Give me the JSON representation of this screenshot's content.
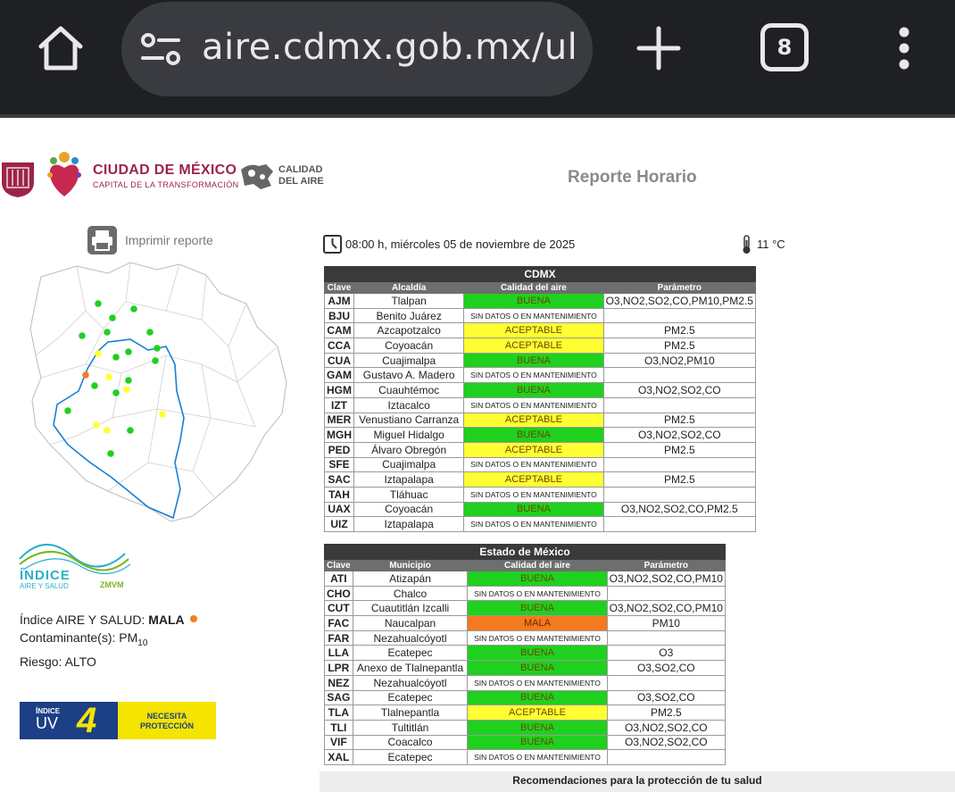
{
  "browser": {
    "url": "aire.cdmx.gob.mx/ult",
    "tab_count": "8"
  },
  "header": {
    "cdmx_title": "CIUDAD DE MÉXICO",
    "cdmx_subtitle": "CAPITAL DE LA TRANSFORMACIÓN",
    "calidad_logo": "CALIDAD\nDEL AIRE",
    "report_title": "Reporte Horario",
    "print_label": "Imprimir reporte"
  },
  "timestamp": "08:00 h, miércoles 05 de noviembre de 2025",
  "temperature": "11 °C",
  "indice": {
    "logo_line1": "ÍNDICE",
    "logo_line2": "AIRE Y SALUD",
    "logo_zmvm": "ZMVM",
    "label": "Índice AIRE Y SALUD: ",
    "value": "MALA",
    "contaminante_label": "Contaminante(s): PM",
    "contaminante_sub": "10",
    "riesgo": "Riesgo: ALTO",
    "status_color": "#f07f1a"
  },
  "uv": {
    "label_small": "ÍNDICE",
    "label_big": "UV",
    "value": "4",
    "recommendation_line1": "NECESITA",
    "recommendation_line2": "PROTECCIÓN"
  },
  "colors": {
    "buena": "#1fd01f",
    "aceptable": "#ffff33",
    "mala": "#f47a1f"
  },
  "cdmx_table": {
    "title": "CDMX",
    "headers": [
      "Clave",
      "Alcaldía",
      "Calidad del aire",
      "Parámetro"
    ],
    "rows": [
      {
        "clave": "AJM",
        "name": "Tlalpan",
        "quality": "BUENA",
        "level": "buena",
        "param": "O3,NO2,SO2,CO,PM10,PM2.5"
      },
      {
        "clave": "BJU",
        "name": "Benito Juárez",
        "quality": "SIN DATOS O EN MANTENIMIENTO",
        "level": "nd",
        "param": ""
      },
      {
        "clave": "CAM",
        "name": "Azcapotzalco",
        "quality": "ACEPTABLE",
        "level": "aceptable",
        "param": "PM2.5"
      },
      {
        "clave": "CCA",
        "name": "Coyoacán",
        "quality": "ACEPTABLE",
        "level": "aceptable",
        "param": "PM2.5"
      },
      {
        "clave": "CUA",
        "name": "Cuajimalpa",
        "quality": "BUENA",
        "level": "buena",
        "param": "O3,NO2,PM10"
      },
      {
        "clave": "GAM",
        "name": "Gustavo A. Madero",
        "quality": "SIN DATOS O EN MANTENIMIENTO",
        "level": "nd",
        "param": ""
      },
      {
        "clave": "HGM",
        "name": "Cuauhtémoc",
        "quality": "BUENA",
        "level": "buena",
        "param": "O3,NO2,SO2,CO"
      },
      {
        "clave": "IZT",
        "name": "Iztacalco",
        "quality": "SIN DATOS O EN MANTENIMIENTO",
        "level": "nd",
        "param": ""
      },
      {
        "clave": "MER",
        "name": "Venustiano Carranza",
        "quality": "ACEPTABLE",
        "level": "aceptable",
        "param": "PM2.5"
      },
      {
        "clave": "MGH",
        "name": "Miguel Hidalgo",
        "quality": "BUENA",
        "level": "buena",
        "param": "O3,NO2,SO2,CO"
      },
      {
        "clave": "PED",
        "name": "Álvaro Obregón",
        "quality": "ACEPTABLE",
        "level": "aceptable",
        "param": "PM2.5"
      },
      {
        "clave": "SFE",
        "name": "Cuajimalpa",
        "quality": "SIN DATOS O EN MANTENIMIENTO",
        "level": "nd",
        "param": ""
      },
      {
        "clave": "SAC",
        "name": "Iztapalapa",
        "quality": "ACEPTABLE",
        "level": "aceptable",
        "param": "PM2.5"
      },
      {
        "clave": "TAH",
        "name": "Tláhuac",
        "quality": "SIN DATOS O EN MANTENIMIENTO",
        "level": "nd",
        "param": ""
      },
      {
        "clave": "UAX",
        "name": "Coyoacán",
        "quality": "BUENA",
        "level": "buena",
        "param": "O3,NO2,SO2,CO,PM2.5"
      },
      {
        "clave": "UIZ",
        "name": "Iztapalapa",
        "quality": "SIN DATOS O EN MANTENIMIENTO",
        "level": "nd",
        "param": ""
      }
    ]
  },
  "edomex_table": {
    "title": "Estado de México",
    "headers": [
      "Clave",
      "Municipio",
      "Calidad del aire",
      "Parámetro"
    ],
    "rows": [
      {
        "clave": "ATI",
        "name": "Atizapán",
        "quality": "BUENA",
        "level": "buena",
        "param": "O3,NO2,SO2,CO,PM10"
      },
      {
        "clave": "CHO",
        "name": "Chalco",
        "quality": "SIN DATOS O EN MANTENIMIENTO",
        "level": "nd",
        "param": ""
      },
      {
        "clave": "CUT",
        "name": "Cuautitlán Izcalli",
        "quality": "BUENA",
        "level": "buena",
        "param": "O3,NO2,SO2,CO,PM10"
      },
      {
        "clave": "FAC",
        "name": "Naucalpan",
        "quality": "MALA",
        "level": "mala",
        "param": "PM10"
      },
      {
        "clave": "FAR",
        "name": "Nezahualcóyotl",
        "quality": "SIN DATOS O EN MANTENIMIENTO",
        "level": "nd",
        "param": ""
      },
      {
        "clave": "LLA",
        "name": "Ecatepec",
        "quality": "BUENA",
        "level": "buena",
        "param": "O3"
      },
      {
        "clave": "LPR",
        "name": "Anexo de Tlalnepantla",
        "quality": "BUENA",
        "level": "buena",
        "param": "O3,SO2,CO"
      },
      {
        "clave": "NEZ",
        "name": "Nezahualcóyotl",
        "quality": "SIN DATOS O EN MANTENIMIENTO",
        "level": "nd",
        "param": ""
      },
      {
        "clave": "SAG",
        "name": "Ecatepec",
        "quality": "BUENA",
        "level": "buena",
        "param": "O3,SO2,CO"
      },
      {
        "clave": "TLA",
        "name": "Tlalnepantla",
        "quality": "ACEPTABLE",
        "level": "aceptable",
        "param": "PM2.5"
      },
      {
        "clave": "TLI",
        "name": "Tultitlán",
        "quality": "BUENA",
        "level": "buena",
        "param": "O3,NO2,SO2,CO"
      },
      {
        "clave": "VIF",
        "name": "Coacalco",
        "quality": "BUENA",
        "level": "buena",
        "param": "O3,NO2,SO2,CO"
      },
      {
        "clave": "XAL",
        "name": "Ecatepec",
        "quality": "SIN DATOS O EN MANTENIMIENTO",
        "level": "nd",
        "param": ""
      }
    ]
  },
  "map_stations": [
    {
      "level": "buena"
    },
    {
      "level": "buena"
    },
    {
      "level": "buena"
    },
    {
      "level": "buena"
    },
    {
      "level": "buena"
    },
    {
      "level": "buena"
    },
    {
      "level": "buena"
    },
    {
      "level": "buena"
    },
    {
      "level": "aceptable"
    },
    {
      "level": "buena"
    },
    {
      "level": "buena"
    },
    {
      "level": "buena"
    },
    {
      "level": "mala"
    },
    {
      "level": "aceptable"
    },
    {
      "level": "buena"
    },
    {
      "level": "aceptable"
    },
    {
      "level": "buena"
    },
    {
      "level": "buena"
    },
    {
      "level": "aceptable"
    },
    {
      "level": "aceptable"
    },
    {
      "level": "aceptable"
    },
    {
      "level": "buena"
    },
    {
      "level": "buena"
    }
  ],
  "recommendations_label": "Recomendaciones para la protección de tu salud"
}
